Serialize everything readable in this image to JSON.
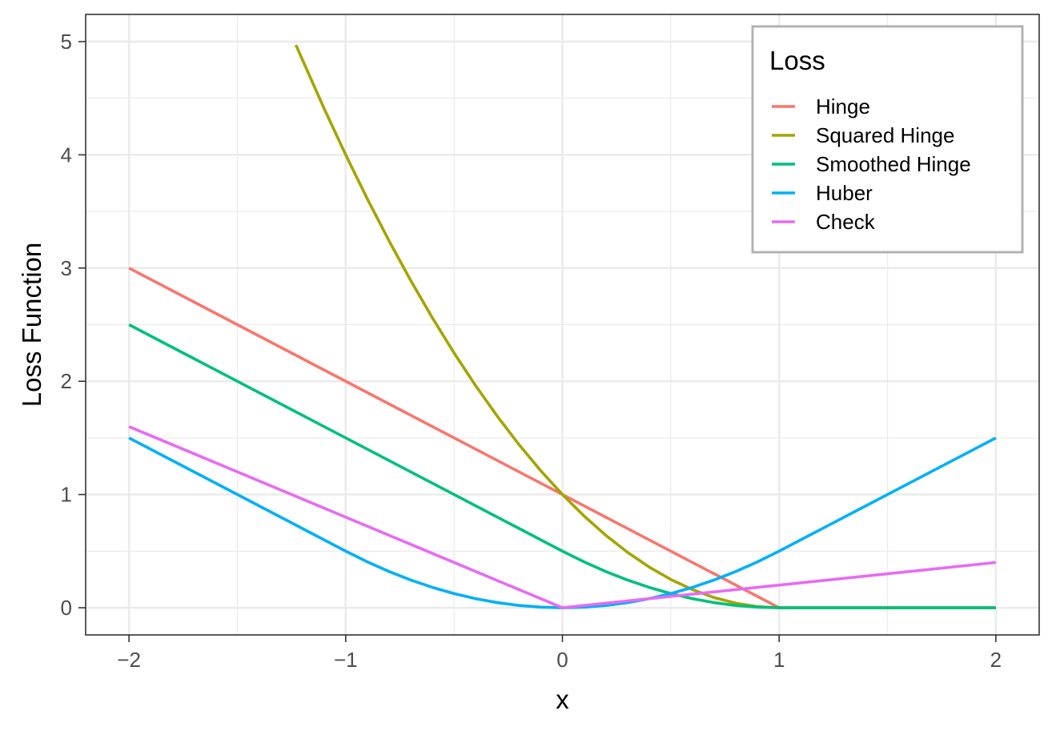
{
  "chart_data": {
    "type": "line",
    "title": "",
    "xlabel": "x",
    "ylabel": "Loss Function",
    "xlim": [
      -2.2,
      2.2
    ],
    "ylim": [
      -0.24,
      5.24
    ],
    "x_ticks": [
      -2,
      -1,
      0,
      1,
      2
    ],
    "x_tick_labels": [
      "−2",
      "−1",
      "0",
      "1",
      "2"
    ],
    "y_ticks": [
      0,
      1,
      2,
      3,
      4,
      5
    ],
    "y_tick_labels": [
      "0",
      "1",
      "2",
      "3",
      "4",
      "5"
    ],
    "grid": true,
    "legend": {
      "title": "Loss",
      "position": "top-right"
    },
    "series": [
      {
        "name": "Hinge",
        "color": "#F8766D",
        "x": [
          -2,
          1,
          2
        ],
        "y": [
          3,
          0,
          0
        ]
      },
      {
        "name": "Squared Hinge",
        "color": "#A3A500",
        "x": [
          -1.23,
          -1.1,
          -1.0,
          -0.9,
          -0.8,
          -0.7,
          -0.6,
          -0.5,
          -0.4,
          -0.3,
          -0.2,
          -0.1,
          0,
          0.1,
          0.2,
          0.3,
          0.4,
          0.5,
          0.6,
          0.7,
          0.8,
          0.9,
          1.0,
          1.5,
          2.0
        ],
        "y": [
          4.97,
          4.41,
          4.0,
          3.61,
          3.24,
          2.89,
          2.56,
          2.25,
          1.96,
          1.69,
          1.44,
          1.21,
          1.0,
          0.81,
          0.64,
          0.49,
          0.36,
          0.25,
          0.16,
          0.09,
          0.04,
          0.01,
          0,
          0,
          0
        ]
      },
      {
        "name": "Smoothed Hinge",
        "color": "#00BF7D",
        "x": [
          -2,
          0,
          0.1,
          0.2,
          0.3,
          0.4,
          0.5,
          0.6,
          0.7,
          0.8,
          0.9,
          1.0,
          2.0
        ],
        "y": [
          2.5,
          0.5,
          0.405,
          0.32,
          0.245,
          0.18,
          0.125,
          0.08,
          0.045,
          0.02,
          0.005,
          0,
          0
        ]
      },
      {
        "name": "Huber",
        "color": "#00B0F6",
        "x": [
          -2,
          -1,
          -0.9,
          -0.8,
          -0.7,
          -0.6,
          -0.5,
          -0.4,
          -0.3,
          -0.2,
          -0.1,
          0,
          0.1,
          0.2,
          0.3,
          0.4,
          0.5,
          0.6,
          0.7,
          0.8,
          0.9,
          1.0,
          2.0
        ],
        "y": [
          1.5,
          0.5,
          0.405,
          0.32,
          0.245,
          0.18,
          0.125,
          0.08,
          0.045,
          0.02,
          0.005,
          0,
          0.005,
          0.02,
          0.045,
          0.08,
          0.125,
          0.18,
          0.245,
          0.32,
          0.405,
          0.5,
          1.5
        ]
      },
      {
        "name": "Check",
        "color": "#E76BF3",
        "x": [
          -2,
          0,
          2
        ],
        "y": [
          1.6,
          0,
          0.4
        ]
      }
    ]
  }
}
